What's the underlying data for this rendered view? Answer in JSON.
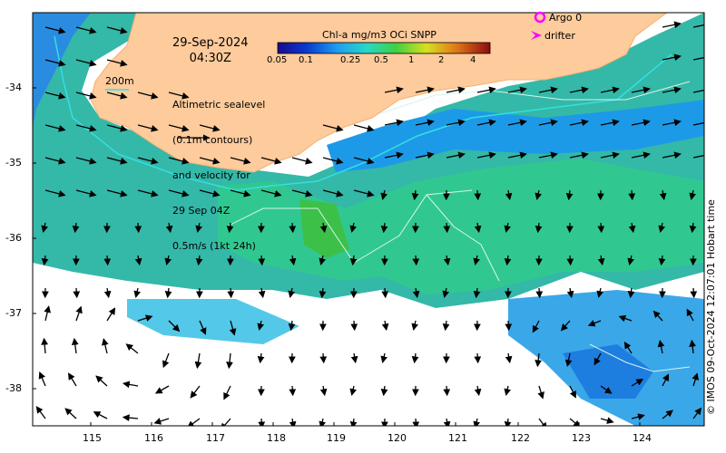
{
  "map": {
    "date_line1": "29-Sep-2024",
    "date_line2": "04:30Z",
    "contour_label": "200m",
    "description_lines": [
      "Altimetric sealevel",
      "(0.1m contours)",
      "and velocity for",
      "29 Sep 04Z",
      "0.5m/s (1kt 24h)"
    ],
    "legend_title": "Chl-a mg/m3 OCi SNPP",
    "colorbar_ticks": [
      "0.05",
      "0.1",
      "0.25",
      "0.5",
      "1",
      "2",
      "4"
    ],
    "argo_label": "Argo 0",
    "drifter_label": "drifter",
    "credit": "© IMOS 09-Oct-2024 12:07:01 Hobart time",
    "x_ticks": [
      "115",
      "116",
      "117",
      "118",
      "119",
      "120",
      "121",
      "122",
      "123",
      "124"
    ],
    "y_ticks": [
      "-34",
      "-35",
      "-36",
      "-37",
      "-38"
    ],
    "colors": {
      "land": "#fdcb9c",
      "ocean_nodata": "#ffffff",
      "argo": "#ff00ff",
      "drifter": "#ff00ff",
      "contour_200m": "#33e0e0",
      "sealevel_contour": "#c8f0e0"
    }
  }
}
